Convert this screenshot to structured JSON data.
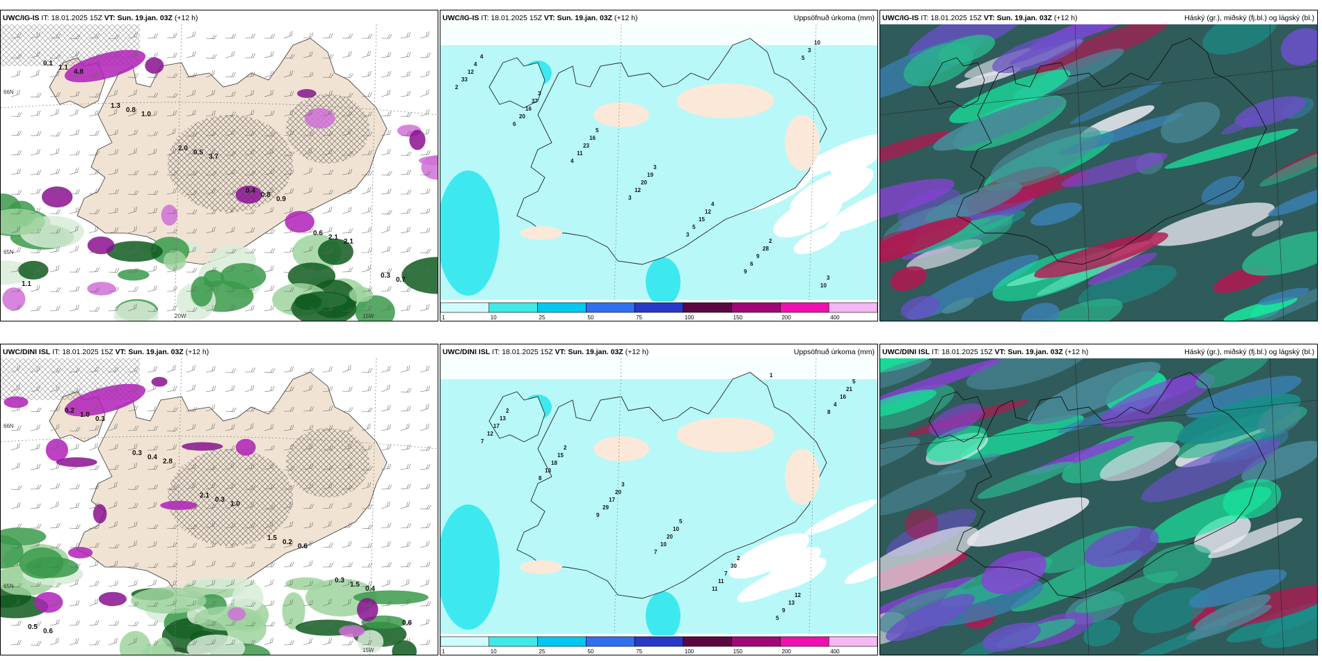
{
  "rows": [
    {
      "model_precip": "UWC/IG-IS",
      "model_wind": "UWC/IG-IS",
      "model_cloud": "UWC/IG-IS",
      "it_label": "IT:",
      "it_value": "18.01.2025 15Z",
      "vt_label": "VT:",
      "vt_value": "Sun. 19.jan. 03Z",
      "lead": "(+12 h)",
      "precip_numbers": [
        "4",
        "3",
        "5",
        "3",
        "4",
        "2",
        "3",
        "4",
        "37",
        "16",
        "19",
        "12",
        "28",
        "10",
        "12",
        "16",
        "23",
        "20",
        "15",
        "9",
        "10",
        "33",
        "20",
        "11",
        "12",
        "5",
        "6",
        "3",
        "2",
        "6",
        "4",
        "3",
        "3",
        "9",
        "5"
      ]
    },
    {
      "model_precip": "UWC/DINI ISL",
      "model_wind": "UWC/DINI ISL",
      "model_cloud": "UWC/DINI ISL",
      "it_label": "IT:",
      "it_value": "18.01.2025 15Z",
      "vt_label": "VT:",
      "vt_value": "Sun. 19.jan. 03Z",
      "lead": "(+12 h)",
      "precip_numbers": [
        "2",
        "2",
        "3",
        "5",
        "2",
        "12",
        "5",
        "13",
        "15",
        "20",
        "10",
        "30",
        "13",
        "21",
        "17",
        "18",
        "17",
        "20",
        "7",
        "9",
        "16",
        "12",
        "13",
        "29",
        "10",
        "11",
        "5",
        "4",
        "7",
        "8",
        "9",
        "7",
        "11",
        "1",
        "8"
      ]
    }
  ],
  "precip_title": "Uppsöfnuð úrkoma (mm)",
  "cloud_title": "Háský (gr.), miðský (fj.bl.) og lágský (bl.)",
  "colorbar": {
    "ticks": [
      "1",
      "10",
      "25",
      "50",
      "75",
      "100",
      "150",
      "200",
      "400"
    ],
    "colors": [
      "#cffcfc",
      "#40e8e8",
      "#00c8f0",
      "#3070f0",
      "#2838c8",
      "#5c0840",
      "#a00878",
      "#f010b0",
      "#f4b8f4"
    ]
  },
  "wind_labels_top": [
    "0.1",
    "1.3",
    "2.0",
    "0.4",
    "0.6",
    "0.3",
    "1.1",
    "0.8",
    "0.5",
    "0.8",
    "2.1",
    "0.7",
    "4.8",
    "1.0",
    "3.7",
    "0.9",
    "2.1",
    "1.1"
  ],
  "wind_labels_bottom": [
    "0.2",
    "0.3",
    "2.1",
    "1.5",
    "0.3",
    "0.6",
    "1.0",
    "0.4",
    "0.3",
    "0.2",
    "1.5",
    "0.5",
    "0.3",
    "2.8",
    "1.0",
    "0.6",
    "0.4",
    "0.6"
  ],
  "lon_labels": [
    "20W",
    "15W"
  ],
  "lat_labels": [
    "66N",
    "65N"
  ],
  "icons": {
    "land": "iceland-land-mass",
    "barbs": "wind-barb-icon"
  }
}
